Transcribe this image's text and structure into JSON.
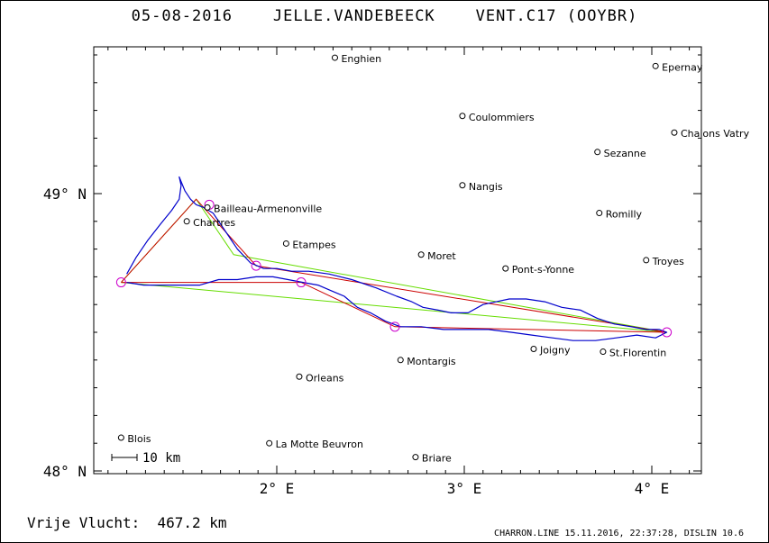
{
  "header": {
    "title": "05-08-2016    JELLE.VANDEBEECK    VENT.C17 (OOYBR)"
  },
  "axes": {
    "x_ticks": [
      {
        "label": "2° E",
        "lon": 2
      },
      {
        "label": "3° E",
        "lon": 3
      },
      {
        "label": "4° E",
        "lon": 4
      }
    ],
    "y_ticks": [
      {
        "label": "49° N",
        "lat": 49
      },
      {
        "label": "48° N",
        "lat": 48
      }
    ]
  },
  "scale_bar": {
    "label": "10 km"
  },
  "towns": [
    {
      "name": "Enghien",
      "lon": 2.31,
      "lat": 49.49
    },
    {
      "name": "Epernay",
      "lon": 4.02,
      "lat": 49.46
    },
    {
      "name": "Coulommiers",
      "lon": 2.99,
      "lat": 49.28
    },
    {
      "name": "Chalons Vatry",
      "lon": 4.12,
      "lat": 49.22
    },
    {
      "name": "Sezanne",
      "lon": 3.71,
      "lat": 49.15
    },
    {
      "name": "Nangis",
      "lon": 2.99,
      "lat": 49.03
    },
    {
      "name": "Bailleau-Armenonville",
      "lon": 1.63,
      "lat": 48.95
    },
    {
      "name": "Romilly",
      "lon": 3.72,
      "lat": 48.93
    },
    {
      "name": "Chartres",
      "lon": 1.52,
      "lat": 48.9
    },
    {
      "name": "Etampes",
      "lon": 2.05,
      "lat": 48.82
    },
    {
      "name": "Moret",
      "lon": 2.77,
      "lat": 48.78
    },
    {
      "name": "Troyes",
      "lon": 3.97,
      "lat": 48.76
    },
    {
      "name": "Pont-s-Yonne",
      "lon": 3.22,
      "lat": 48.73
    },
    {
      "name": "Joigny",
      "lon": 3.37,
      "lat": 48.44
    },
    {
      "name": "St.Florentin",
      "lon": 3.74,
      "lat": 48.43
    },
    {
      "name": "Montargis",
      "lon": 2.66,
      "lat": 48.4
    },
    {
      "name": "Orleans",
      "lon": 2.12,
      "lat": 48.34
    },
    {
      "name": "Blois",
      "lon": 1.17,
      "lat": 48.12
    },
    {
      "name": "La Motte Beuvron",
      "lon": 1.96,
      "lat": 48.1
    },
    {
      "name": "Briare",
      "lon": 2.74,
      "lat": 48.05
    }
  ],
  "task": {
    "turnpoints": [
      {
        "lon": 1.17,
        "lat": 48.68
      },
      {
        "lon": 1.64,
        "lat": 48.96
      },
      {
        "lon": 1.89,
        "lat": 48.74
      },
      {
        "lon": 2.13,
        "lat": 48.68
      },
      {
        "lon": 2.63,
        "lat": 48.52
      },
      {
        "lon": 4.08,
        "lat": 48.5
      }
    ],
    "optimized_route": [
      [
        1.17,
        48.68
      ],
      [
        1.57,
        48.98
      ],
      [
        1.77,
        48.78
      ],
      [
        4.08,
        48.5
      ],
      [
        1.17,
        48.68
      ]
    ],
    "task_route": [
      [
        1.17,
        48.68
      ],
      [
        1.57,
        48.98
      ],
      [
        1.89,
        48.74
      ],
      [
        4.08,
        48.5
      ],
      [
        2.63,
        48.52
      ],
      [
        2.13,
        48.68
      ],
      [
        1.17,
        48.68
      ]
    ]
  },
  "track": [
    [
      1.2,
      48.71
    ],
    [
      1.25,
      48.77
    ],
    [
      1.31,
      48.83
    ],
    [
      1.38,
      48.89
    ],
    [
      1.44,
      48.94
    ],
    [
      1.48,
      48.98
    ],
    [
      1.49,
      49.03
    ],
    [
      1.48,
      49.06
    ],
    [
      1.51,
      49.01
    ],
    [
      1.54,
      48.98
    ],
    [
      1.57,
      48.96
    ],
    [
      1.61,
      48.95
    ],
    [
      1.66,
      48.93
    ],
    [
      1.72,
      48.87
    ],
    [
      1.79,
      48.8
    ],
    [
      1.86,
      48.75
    ],
    [
      1.93,
      48.73
    ],
    [
      2.0,
      48.73
    ],
    [
      2.08,
      48.72
    ],
    [
      2.17,
      48.72
    ],
    [
      2.28,
      48.71
    ],
    [
      2.4,
      48.69
    ],
    [
      2.53,
      48.66
    ],
    [
      2.64,
      48.63
    ],
    [
      2.72,
      48.61
    ],
    [
      2.78,
      48.59
    ],
    [
      2.86,
      48.58
    ],
    [
      2.93,
      48.57
    ],
    [
      3.02,
      48.57
    ],
    [
      3.1,
      48.6
    ],
    [
      3.17,
      48.61
    ],
    [
      3.24,
      48.62
    ],
    [
      3.33,
      48.62
    ],
    [
      3.43,
      48.61
    ],
    [
      3.52,
      48.59
    ],
    [
      3.62,
      48.58
    ],
    [
      3.71,
      48.55
    ],
    [
      3.8,
      48.53
    ],
    [
      3.89,
      48.52
    ],
    [
      3.97,
      48.51
    ],
    [
      4.04,
      48.51
    ],
    [
      4.08,
      48.5
    ],
    [
      4.02,
      48.48
    ],
    [
      3.92,
      48.49
    ],
    [
      3.81,
      48.48
    ],
    [
      3.7,
      48.47
    ],
    [
      3.58,
      48.47
    ],
    [
      3.47,
      48.48
    ],
    [
      3.36,
      48.49
    ],
    [
      3.25,
      48.5
    ],
    [
      3.13,
      48.51
    ],
    [
      3.01,
      48.51
    ],
    [
      2.89,
      48.51
    ],
    [
      2.77,
      48.52
    ],
    [
      2.66,
      48.52
    ],
    [
      2.58,
      48.54
    ],
    [
      2.5,
      48.57
    ],
    [
      2.43,
      48.59
    ],
    [
      2.36,
      48.63
    ],
    [
      2.29,
      48.65
    ],
    [
      2.22,
      48.67
    ],
    [
      2.14,
      48.68
    ],
    [
      2.06,
      48.69
    ],
    [
      1.98,
      48.7
    ],
    [
      1.89,
      48.7
    ],
    [
      1.79,
      48.69
    ],
    [
      1.69,
      48.69
    ],
    [
      1.59,
      48.67
    ],
    [
      1.49,
      48.67
    ],
    [
      1.39,
      48.67
    ],
    [
      1.29,
      48.67
    ],
    [
      1.2,
      48.68
    ]
  ],
  "footer": {
    "distance_text": "Vrije Vlucht:  467.2 km",
    "credit": "CHARRON.LINE 15.11.2016, 22:37:28, DISLIN 10.6"
  },
  "colors": {
    "track": "#0000cc",
    "task_route": "#cc0000",
    "optimized_route": "#66dd00",
    "turnpoint": "#cc00cc",
    "background": "#ffffff",
    "ink": "#000000"
  }
}
